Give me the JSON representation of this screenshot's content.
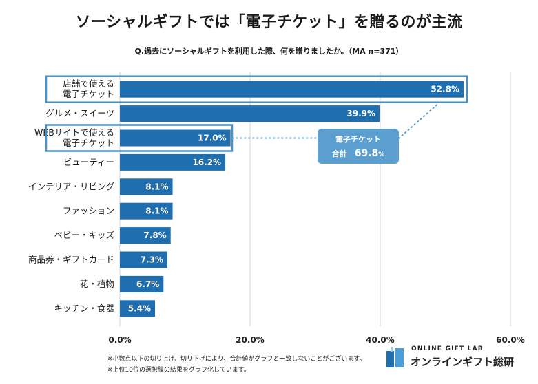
{
  "header": {
    "title": "ソーシャルギフトでは「電子チケット」を贈るのが主流",
    "subtitle": "Q.過去にソーシャルギフトを利用した際、何を贈りましたか。（MA n=371）"
  },
  "chart_data": {
    "type": "bar",
    "orientation": "horizontal",
    "categories": [
      "店舗で使える\n電子チケット",
      "グルメ・スイーツ",
      "WEBサイトで使える\n電子チケット",
      "ビューティー",
      "インテリア・リビング",
      "ファッション",
      "ベビー・キッズ",
      "商品券・ギフトカード",
      "花・植物",
      "キッチン・食器"
    ],
    "values": [
      52.8,
      39.9,
      17.0,
      16.2,
      8.1,
      8.1,
      7.8,
      7.3,
      6.7,
      5.4
    ],
    "value_labels": [
      "52.8%",
      "39.9%",
      "17.0%",
      "16.2%",
      "8.1%",
      "8.1%",
      "7.8%",
      "7.3%",
      "6.7%",
      "5.4%"
    ],
    "xlim": [
      0,
      60
    ],
    "xticks": [
      0,
      20,
      40,
      60
    ],
    "xtick_labels": [
      "0.0%",
      "20.0%",
      "40.0%",
      "60.0%"
    ],
    "grid": "vertical",
    "highlighted_categories": [
      0,
      2
    ],
    "annotation": {
      "line1": "電子チケット",
      "line2_prefix": "合計",
      "line2_value": "69.8",
      "line2_unit": "%"
    },
    "colors": {
      "bar": "#1f6fb0",
      "highlight_box": "#4a90c2",
      "callout": "#5b9fd0",
      "grid": "#d6d6d6"
    }
  },
  "notes": [
    "※小数点以下の切り上げ、切り下げにより、合計値がグラフと一致しないことがございます。",
    "※上位10位の選択肢の結果をグラフ化しています。"
  ],
  "logo": {
    "en": "ONLINE GIFT LAB",
    "ja": "オンラインギフト総研"
  }
}
